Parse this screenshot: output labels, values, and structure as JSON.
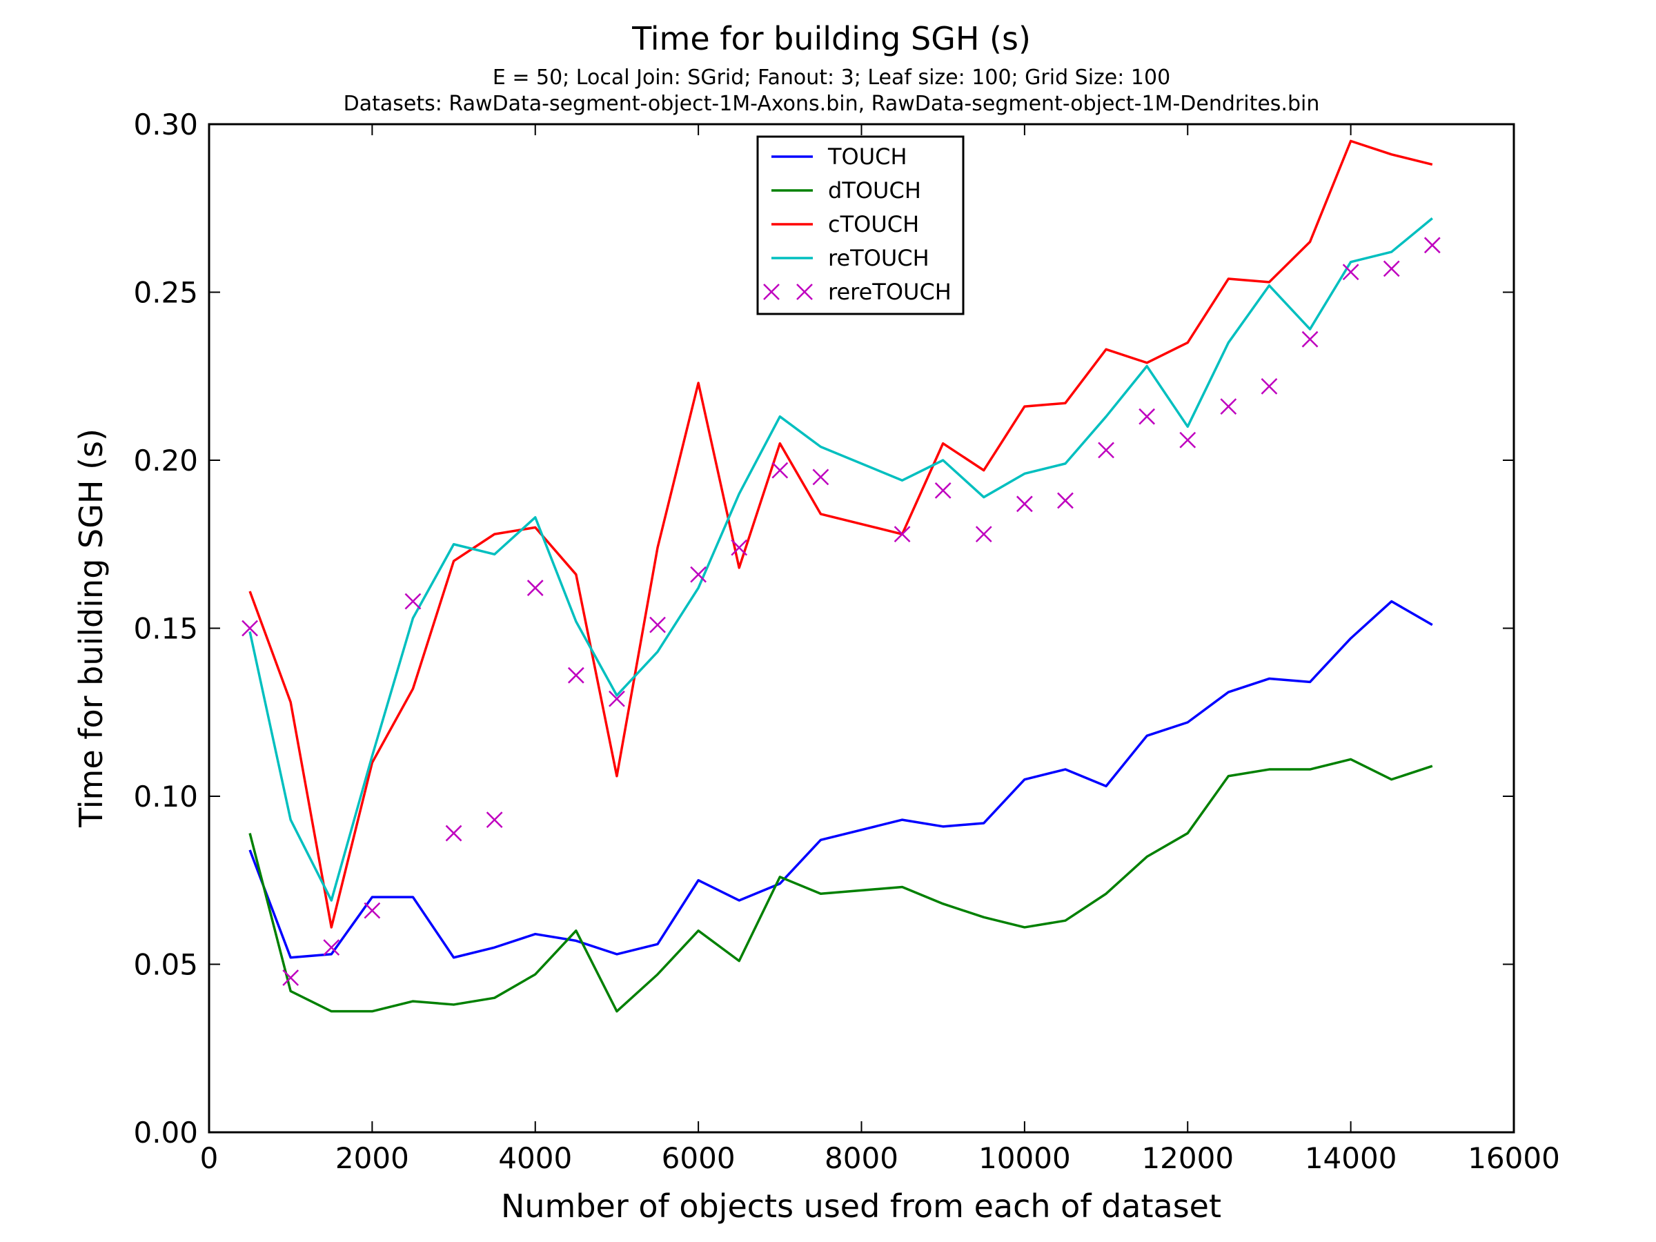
{
  "chart_data": {
    "type": "line",
    "title": "Time for building SGH (s)",
    "subtitle_line1": "E = 50; Local Join: SGrid; Fanout: 3; Leaf size: 100; Grid Size: 100",
    "subtitle_line2": "Datasets: RawData-segment-object-1M-Axons.bin, RawData-segment-object-1M-Dendrites.bin",
    "xlabel": "Number of objects used from each of dataset",
    "ylabel": "Time for building SGH (s)",
    "xlim": [
      0,
      16000
    ],
    "ylim": [
      0,
      0.3
    ],
    "xticks": [
      0,
      2000,
      4000,
      6000,
      8000,
      10000,
      12000,
      14000,
      16000
    ],
    "xtick_labels": [
      "0",
      "2000",
      "4000",
      "6000",
      "8000",
      "10000",
      "12000",
      "14000",
      "16000"
    ],
    "yticks": [
      0,
      0.05,
      0.1,
      0.15,
      0.2,
      0.25,
      0.3
    ],
    "ytick_labels": [
      "0.00",
      "0.05",
      "0.10",
      "0.15",
      "0.20",
      "0.25",
      "0.30"
    ],
    "grid": false,
    "legend_position": "top-center",
    "x": [
      500,
      1000,
      1500,
      2000,
      2500,
      3000,
      3500,
      4000,
      4500,
      5000,
      5500,
      6000,
      6500,
      7000,
      7500,
      8500,
      9000,
      9500,
      10000,
      10500,
      11000,
      11500,
      12000,
      12500,
      13000,
      13500,
      14000,
      14500,
      15000
    ],
    "series": [
      {
        "name": "TOUCH",
        "color": "#0000ff",
        "style": "line",
        "values": [
          0.084,
          0.052,
          0.053,
          0.07,
          0.07,
          0.052,
          0.055,
          0.059,
          0.057,
          0.053,
          0.056,
          0.075,
          0.069,
          0.074,
          0.087,
          0.093,
          0.091,
          0.092,
          0.105,
          0.108,
          0.103,
          0.118,
          0.122,
          0.131,
          0.135,
          0.134,
          0.147,
          0.158,
          0.151
        ]
      },
      {
        "name": "dTOUCH",
        "color": "#008000",
        "style": "line",
        "values": [
          0.089,
          0.042,
          0.036,
          0.036,
          0.039,
          0.038,
          0.04,
          0.047,
          0.06,
          0.036,
          0.047,
          0.06,
          0.051,
          0.076,
          0.071,
          0.073,
          0.068,
          0.064,
          0.061,
          0.063,
          0.071,
          0.082,
          0.089,
          0.106,
          0.108,
          0.108,
          0.111,
          0.105,
          0.109
        ]
      },
      {
        "name": "cTOUCH",
        "color": "#ff0000",
        "style": "line",
        "values": [
          0.161,
          0.128,
          0.061,
          0.11,
          0.132,
          0.17,
          0.178,
          0.18,
          0.166,
          0.106,
          0.174,
          0.223,
          0.168,
          0.205,
          0.184,
          0.178,
          0.205,
          0.197,
          0.216,
          0.217,
          0.233,
          0.229,
          0.235,
          0.254,
          0.253,
          0.265,
          0.295,
          0.291,
          0.288
        ]
      },
      {
        "name": "reTOUCH",
        "color": "#00bfbf",
        "style": "line",
        "values": [
          0.149,
          0.093,
          0.069,
          0.112,
          0.153,
          0.175,
          0.172,
          0.183,
          0.152,
          0.13,
          0.143,
          0.162,
          0.19,
          0.213,
          0.204,
          0.194,
          0.2,
          0.189,
          0.196,
          0.199,
          0.213,
          0.228,
          0.21,
          0.235,
          0.252,
          0.239,
          0.259,
          0.262,
          0.272
        ]
      },
      {
        "name": "rereTOUCH",
        "color": "#bf00bf",
        "style": "marker-x",
        "values": [
          0.15,
          0.046,
          0.055,
          0.066,
          0.158,
          0.089,
          0.093,
          0.162,
          0.136,
          0.129,
          0.151,
          0.166,
          0.174,
          0.197,
          0.195,
          0.178,
          0.191,
          0.178,
          0.187,
          0.188,
          0.203,
          0.213,
          0.206,
          0.216,
          0.222,
          0.236,
          0.256,
          0.257,
          0.264
        ]
      }
    ]
  }
}
